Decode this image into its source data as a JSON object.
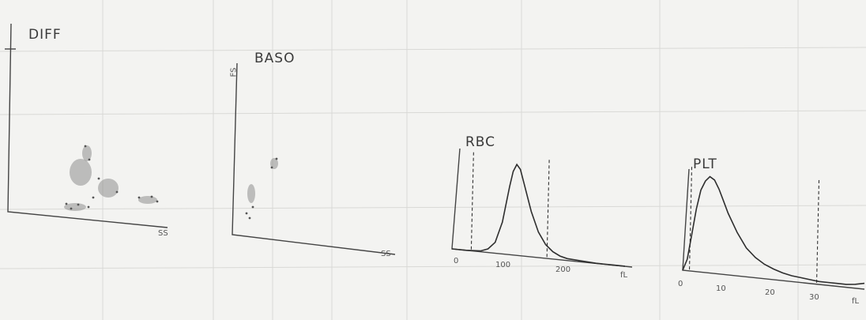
{
  "chart_data": [
    {
      "type": "scatter",
      "title": "DIFF",
      "xlabel": "",
      "ylabel": "",
      "axis_end_label_x": "SS",
      "grid": false
    },
    {
      "type": "scatter",
      "title": "BASO",
      "xlabel": "",
      "ylabel": "",
      "axis_end_label_x": "SS",
      "axis_end_label_y": "FS",
      "grid": false
    },
    {
      "type": "line",
      "title": "RBC",
      "x_unit": "fL",
      "x_ticks": [
        "0",
        "100",
        "200",
        "fL"
      ],
      "xlim": [
        0,
        250
      ],
      "discriminators": [
        30,
        135
      ],
      "x": [
        0,
        20,
        40,
        50,
        60,
        70,
        80,
        85,
        90,
        95,
        100,
        110,
        120,
        130,
        140,
        150,
        160,
        180,
        200,
        220,
        240
      ],
      "y": [
        0,
        0,
        1,
        4,
        12,
        35,
        75,
        92,
        100,
        95,
        80,
        50,
        28,
        15,
        8,
        4,
        2,
        1,
        0,
        0,
        0
      ],
      "grid": false
    },
    {
      "type": "line",
      "title": "PLT",
      "x_unit": "fL",
      "x_ticks": [
        "0",
        "10",
        "20",
        "30",
        "fL"
      ],
      "xlim": [
        0,
        40
      ],
      "discriminators": [
        2,
        30
      ],
      "x": [
        0,
        1,
        2,
        3,
        4,
        5,
        6,
        7,
        8,
        9,
        10,
        12,
        14,
        16,
        18,
        20,
        22,
        24,
        26,
        28,
        30,
        32,
        34,
        36,
        38,
        40
      ],
      "y": [
        0,
        12,
        38,
        65,
        85,
        95,
        100,
        97,
        88,
        76,
        64,
        45,
        30,
        21,
        15,
        11,
        8,
        6,
        5,
        4,
        3,
        3,
        3,
        3,
        4,
        6
      ],
      "grid": false
    }
  ]
}
